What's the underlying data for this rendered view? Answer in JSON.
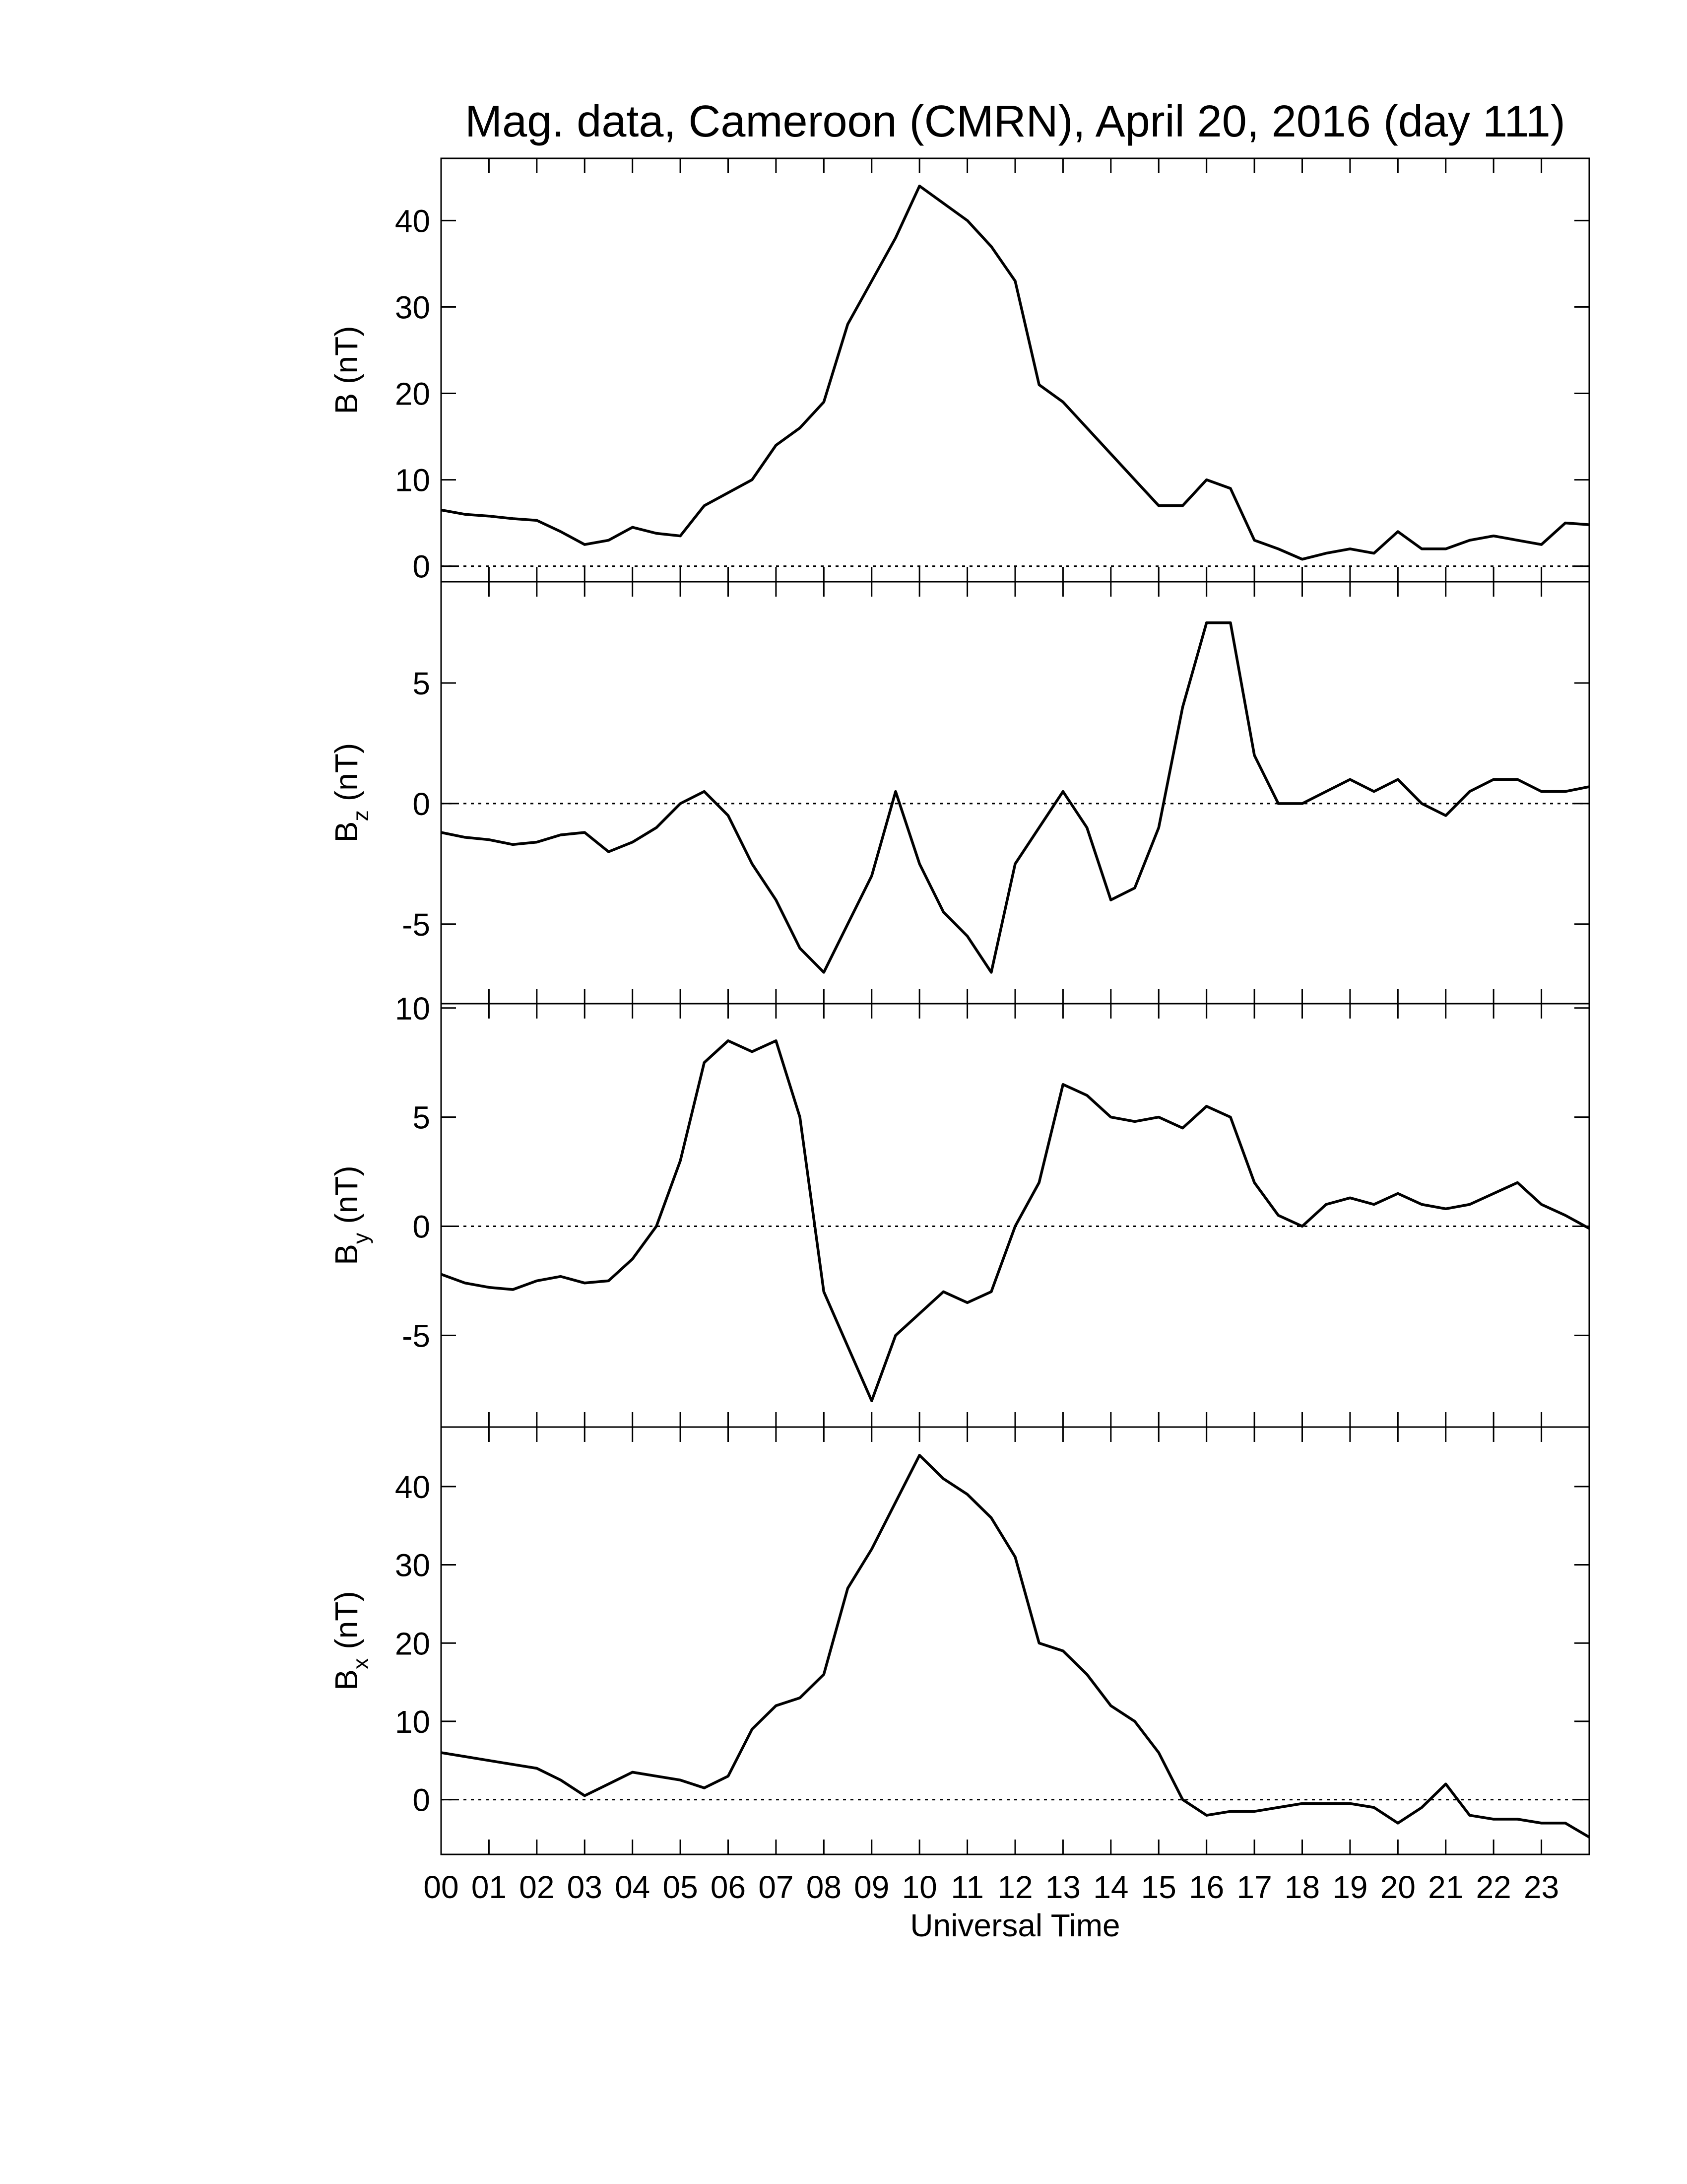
{
  "chart_data": [
    {
      "type": "line",
      "title": "Mag. data, Cameroon (CMRN), April 20, 2016 (day 111)",
      "y_label": {
        "symbol": "B",
        "unit": "(nT)"
      },
      "x": [
        0,
        0.5,
        1,
        1.5,
        2,
        2.5,
        3,
        3.5,
        4,
        4.5,
        5,
        5.5,
        6,
        6.5,
        7,
        7.5,
        8,
        8.5,
        9,
        9.5,
        10,
        10.5,
        11,
        11.5,
        12,
        12.5,
        13,
        13.5,
        14,
        14.5,
        15,
        15.5,
        16,
        16.5,
        17,
        17.5,
        18,
        18.5,
        19,
        19.5,
        20,
        20.5,
        21,
        21.5,
        22,
        22.5,
        23,
        23.5,
        24
      ],
      "values": [
        6.5,
        6,
        5.8,
        5.5,
        5.3,
        4,
        2.5,
        3,
        4.5,
        3.8,
        3.5,
        7,
        8.5,
        10,
        14,
        16,
        19,
        28,
        33,
        38,
        44,
        42,
        40,
        37,
        33,
        21,
        19,
        16,
        13,
        10,
        7,
        7,
        10,
        9,
        3,
        2,
        0.8,
        1.5,
        2,
        1.5,
        4,
        2,
        2,
        3,
        3.5,
        3,
        2.5,
        5,
        4.8
      ],
      "color": "#000000",
      "xlim": [
        0,
        24
      ],
      "ylim": [
        -1.8,
        47.2
      ],
      "yticks": [
        0,
        10,
        20,
        30,
        40
      ],
      "hline": 0
    },
    {
      "type": "line",
      "y_label": {
        "symbol": "B",
        "subscript": "z",
        "unit": "(nT)"
      },
      "x": [
        0,
        0.5,
        1,
        1.5,
        2,
        2.5,
        3,
        3.5,
        4,
        4.5,
        5,
        5.5,
        6,
        6.5,
        7,
        7.5,
        8,
        8.5,
        9,
        9.5,
        10,
        10.5,
        11,
        11.5,
        12,
        12.5,
        13,
        13.5,
        14,
        14.5,
        15,
        15.5,
        16,
        16.5,
        17,
        17.5,
        18,
        18.5,
        19,
        19.5,
        20,
        20.5,
        21,
        21.5,
        22,
        22.5,
        23,
        23.5,
        24
      ],
      "values": [
        -1.2,
        -1.4,
        -1.5,
        -1.7,
        -1.6,
        -1.3,
        -1.2,
        -2,
        -1.6,
        -1,
        0,
        0.5,
        -0.5,
        -2.5,
        -4,
        -6,
        -7,
        -5,
        -3,
        0.5,
        -2.5,
        -4.5,
        -5.5,
        -7,
        -2.5,
        -1,
        0.5,
        -1,
        -4,
        -3.5,
        -1,
        4,
        7.5,
        7.5,
        2,
        0,
        0,
        0.5,
        1,
        0.5,
        1,
        0,
        -0.5,
        0.5,
        1,
        1,
        0.5,
        0.5,
        0.7
      ],
      "color": "#000000",
      "xlim": [
        0,
        24
      ],
      "ylim": [
        -8.3,
        9.2
      ],
      "yticks": [
        -5,
        0,
        5
      ],
      "hline": 0
    },
    {
      "type": "line",
      "y_label": {
        "symbol": "B",
        "subscript": "y",
        "unit": "(nT)"
      },
      "x": [
        0,
        0.5,
        1,
        1.5,
        2,
        2.5,
        3,
        3.5,
        4,
        4.5,
        5,
        5.5,
        6,
        6.5,
        7,
        7.5,
        8,
        8.5,
        9,
        9.5,
        10,
        10.5,
        11,
        11.5,
        12,
        12.5,
        13,
        13.5,
        14,
        14.5,
        15,
        15.5,
        16,
        16.5,
        17,
        17.5,
        18,
        18.5,
        19,
        19.5,
        20,
        20.5,
        21,
        21.5,
        22,
        22.5,
        23,
        23.5,
        24
      ],
      "values": [
        -2.2,
        -2.6,
        -2.8,
        -2.9,
        -2.5,
        -2.3,
        -2.6,
        -2.5,
        -1.5,
        0,
        3,
        7.5,
        8.5,
        8,
        8.5,
        5,
        -3,
        -5.5,
        -8,
        -5,
        -4,
        -3,
        -3.5,
        -3,
        0,
        2,
        6.5,
        6,
        5,
        4.8,
        5,
        4.5,
        5.5,
        5,
        2,
        0.5,
        0,
        1,
        1.3,
        1,
        1.5,
        1,
        0.8,
        1,
        1.5,
        2,
        1,
        0.5,
        -0.1
      ],
      "color": "#000000",
      "xlim": [
        0,
        24
      ],
      "ylim": [
        -9.2,
        10.2
      ],
      "yticks": [
        -5,
        0,
        5,
        10
      ],
      "hline": 0
    },
    {
      "type": "line",
      "y_label": {
        "symbol": "B",
        "subscript": "x",
        "unit": "(nT)"
      },
      "x_label": "Universal Time",
      "x": [
        0,
        0.5,
        1,
        1.5,
        2,
        2.5,
        3,
        3.5,
        4,
        4.5,
        5,
        5.5,
        6,
        6.5,
        7,
        7.5,
        8,
        8.5,
        9,
        9.5,
        10,
        10.5,
        11,
        11.5,
        12,
        12.5,
        13,
        13.5,
        14,
        14.5,
        15,
        15.5,
        16,
        16.5,
        17,
        17.5,
        18,
        18.5,
        19,
        19.5,
        20,
        20.5,
        21,
        21.5,
        22,
        22.5,
        23,
        23.5,
        24
      ],
      "values": [
        6,
        5.5,
        5,
        4.5,
        4,
        2.5,
        0.5,
        2,
        3.5,
        3,
        2.5,
        1.5,
        3,
        9,
        12,
        13,
        16,
        27,
        32,
        38,
        44,
        41,
        39,
        36,
        31,
        20,
        19,
        16,
        12,
        10,
        6,
        0,
        -2,
        -1.5,
        -1.5,
        -1,
        -0.5,
        -0.5,
        -0.5,
        -1,
        -3,
        -1,
        2,
        -2,
        -2.5,
        -2.5,
        -3,
        -3,
        -4.8
      ],
      "color": "#000000",
      "xlim": [
        0,
        24
      ],
      "ylim": [
        -7.0,
        47.6
      ],
      "yticks": [
        0,
        10,
        20,
        30,
        40
      ],
      "hline": 0,
      "xticks": [
        {
          "value": 0,
          "label": "00"
        },
        {
          "value": 1,
          "label": "01"
        },
        {
          "value": 2,
          "label": "02"
        },
        {
          "value": 3,
          "label": "03"
        },
        {
          "value": 4,
          "label": "04"
        },
        {
          "value": 5,
          "label": "05"
        },
        {
          "value": 6,
          "label": "06"
        },
        {
          "value": 7,
          "label": "07"
        },
        {
          "value": 8,
          "label": "08"
        },
        {
          "value": 9,
          "label": "09"
        },
        {
          "value": 10,
          "label": "10"
        },
        {
          "value": 11,
          "label": "11"
        },
        {
          "value": 12,
          "label": "12"
        },
        {
          "value": 13,
          "label": "13"
        },
        {
          "value": 14,
          "label": "14"
        },
        {
          "value": 15,
          "label": "15"
        },
        {
          "value": 16,
          "label": "16"
        },
        {
          "value": 17,
          "label": "17"
        },
        {
          "value": 18,
          "label": "18"
        },
        {
          "value": 19,
          "label": "19"
        },
        {
          "value": 20,
          "label": "20"
        },
        {
          "value": 21,
          "label": "21"
        },
        {
          "value": 22,
          "label": "22"
        },
        {
          "value": 23,
          "label": "23"
        }
      ]
    }
  ]
}
